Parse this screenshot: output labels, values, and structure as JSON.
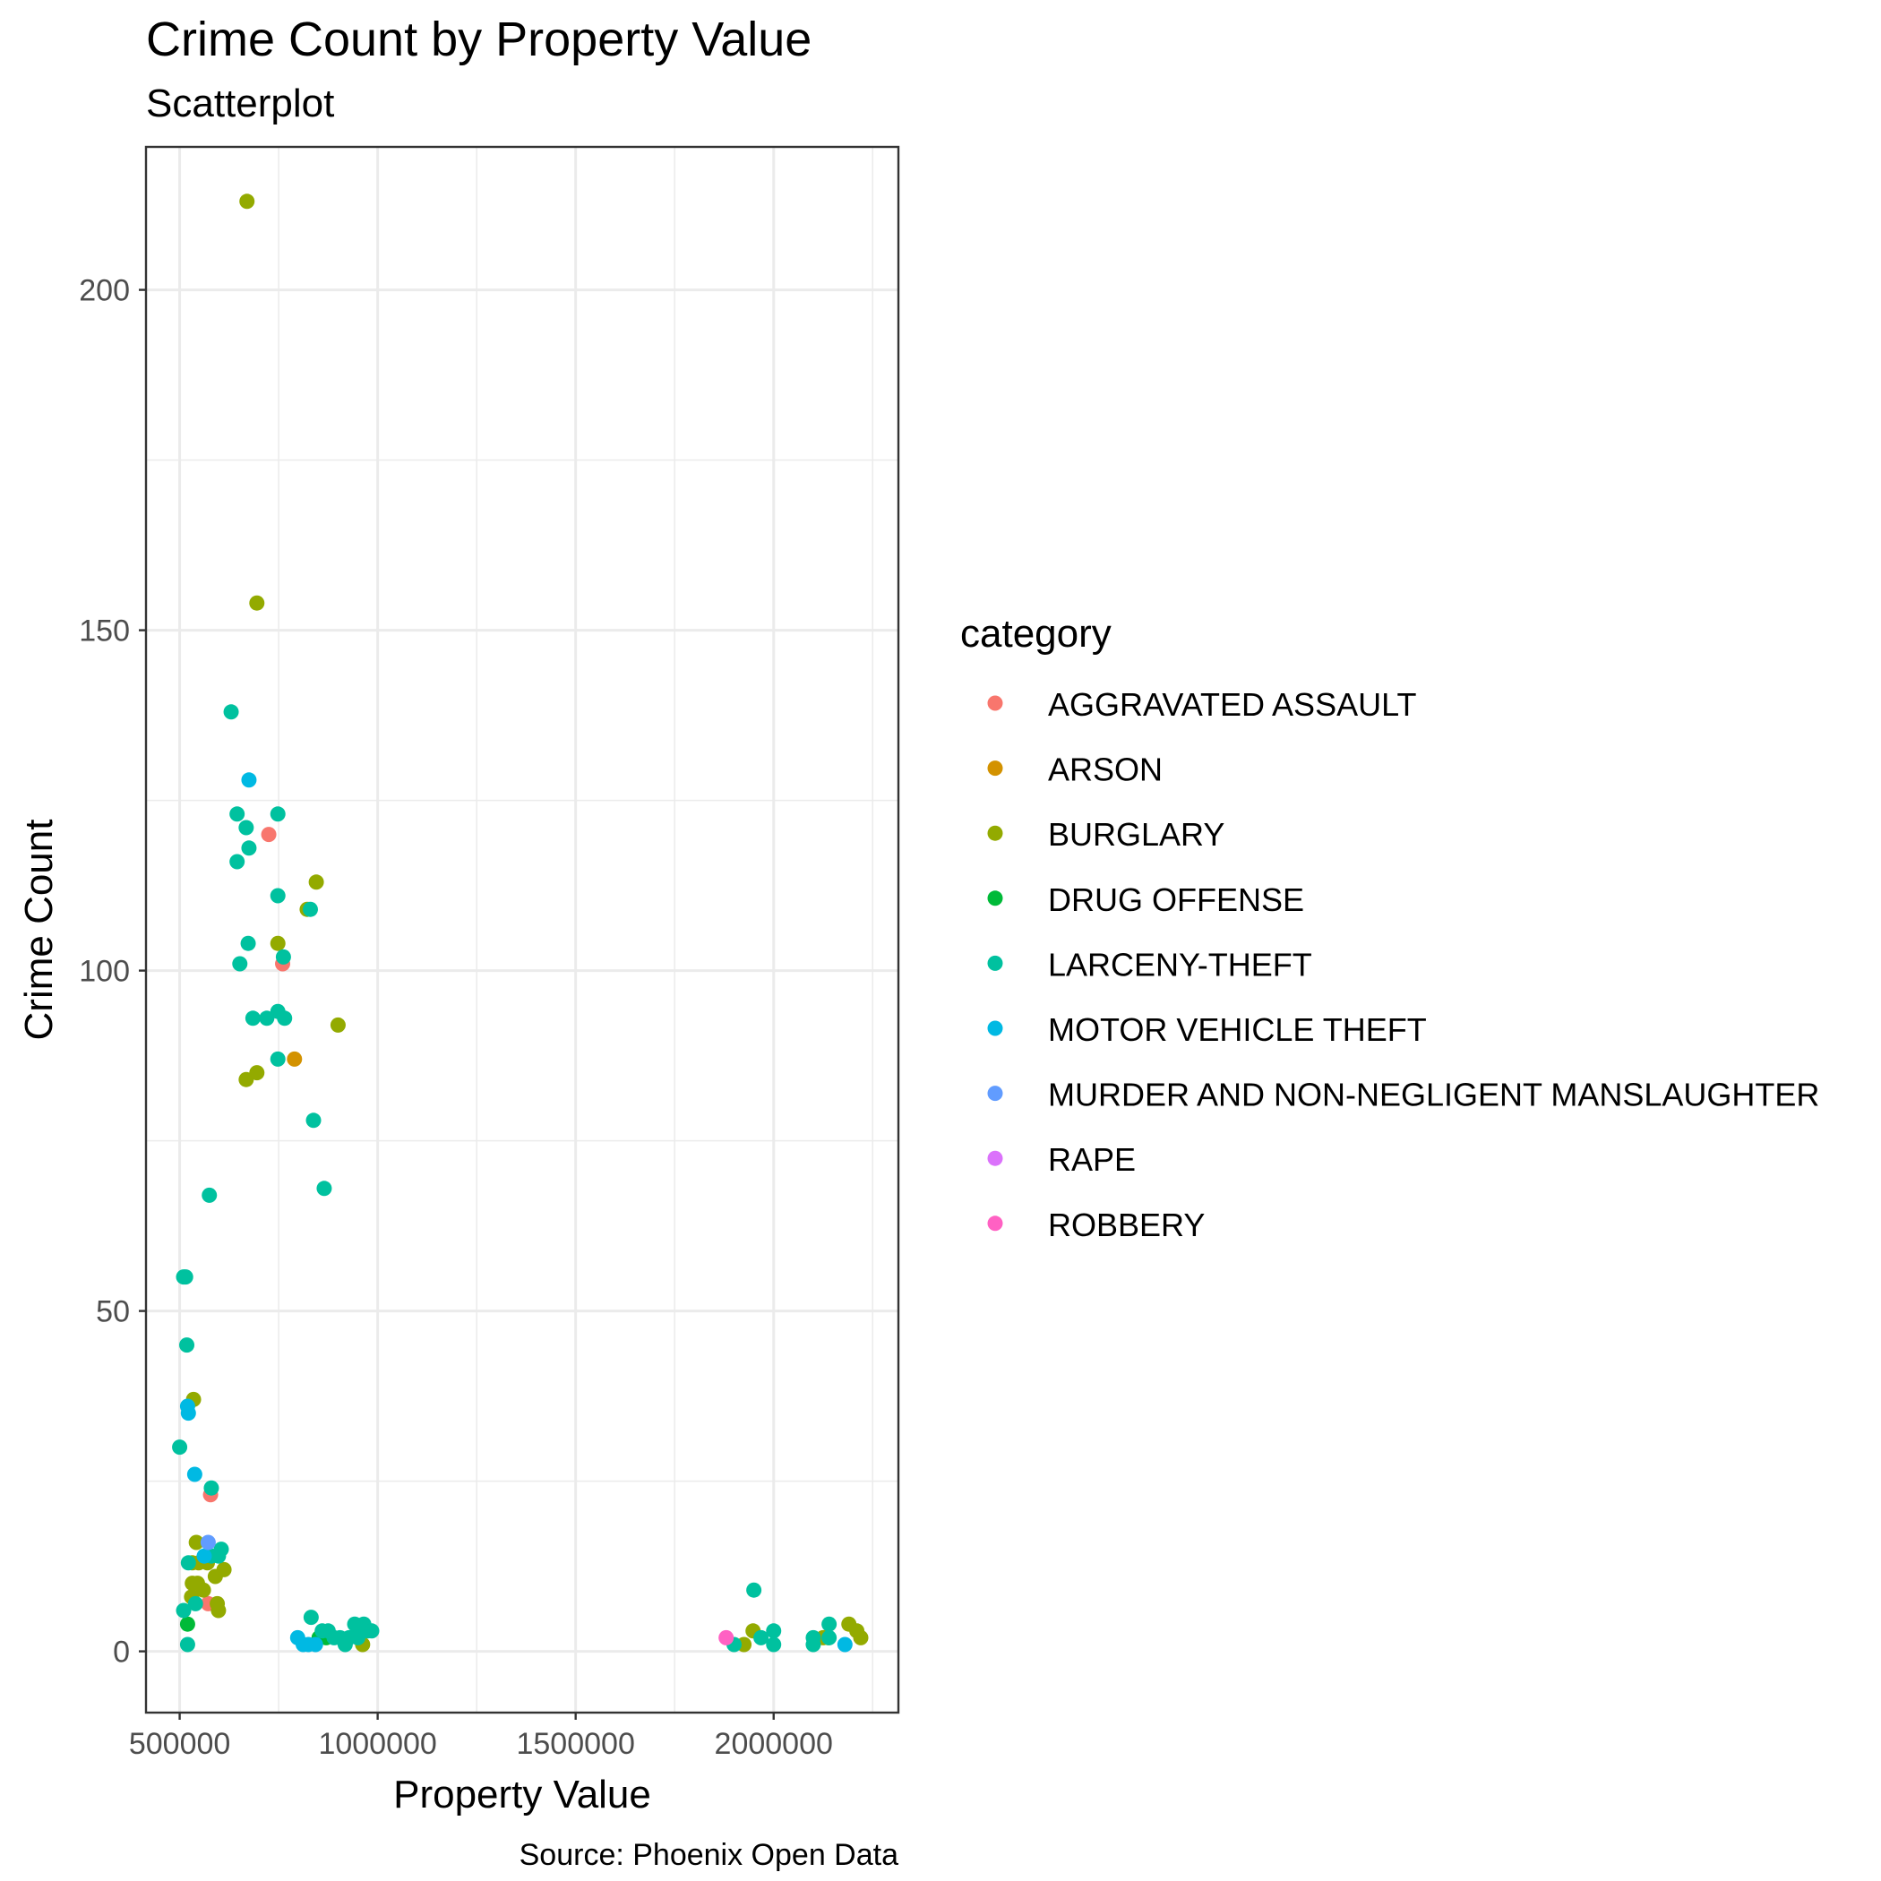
{
  "chart_data": {
    "type": "scatter",
    "title": "Crime Count by Property Value",
    "subtitle": "Scatterplot",
    "xlabel": "Property Value",
    "ylabel": "Crime Count",
    "caption": "Source: Phoenix Open Data",
    "xlim": [
      415000,
      2315000
    ],
    "ylim": [
      -9,
      221
    ],
    "x_ticks": [
      500000,
      1000000,
      1500000,
      2000000
    ],
    "x_tick_labels": [
      "500000",
      "1000000",
      "1500000",
      "2000000"
    ],
    "y_ticks": [
      0,
      50,
      100,
      150,
      200
    ],
    "y_tick_labels": [
      "0",
      "50",
      "100",
      "150",
      "200"
    ],
    "grid": true,
    "legend": {
      "title": "category",
      "position": "right"
    },
    "series": [
      {
        "name": "AGGRAVATED ASSAULT",
        "color": "#F8766D",
        "points": [
          [
            725000,
            120
          ],
          [
            760000,
            101
          ],
          [
            578000,
            23
          ],
          [
            572000,
            7
          ]
        ]
      },
      {
        "name": "ARSON",
        "color": "#D39200",
        "points": [
          [
            790000,
            87
          ]
        ]
      },
      {
        "name": "BURGLARY",
        "color": "#93AA00",
        "points": [
          [
            670000,
            213
          ],
          [
            695000,
            154
          ],
          [
            845000,
            113
          ],
          [
            822000,
            109
          ],
          [
            748000,
            104
          ],
          [
            900000,
            92
          ],
          [
            695000,
            85
          ],
          [
            668000,
            84
          ],
          [
            535000,
            37
          ],
          [
            542000,
            16
          ],
          [
            532000,
            13
          ],
          [
            548000,
            13
          ],
          [
            570000,
            13
          ],
          [
            532000,
            10
          ],
          [
            545000,
            10
          ],
          [
            530000,
            8
          ],
          [
            560000,
            9
          ],
          [
            612000,
            12
          ],
          [
            590000,
            11
          ],
          [
            595000,
            7
          ],
          [
            598000,
            6
          ],
          [
            962000,
            1
          ],
          [
            1948000,
            3
          ],
          [
            1925000,
            1
          ],
          [
            2190000,
            4
          ],
          [
            2210000,
            3
          ],
          [
            2220000,
            2
          ],
          [
            2125000,
            2
          ],
          [
            2138000,
            2
          ]
        ]
      },
      {
        "name": "DRUG OFFENSE",
        "color": "#00BA38",
        "points": [
          [
            520000,
            4
          ],
          [
            852000,
            2
          ],
          [
            870000,
            2
          ]
        ]
      },
      {
        "name": "LARCENY-THEFT",
        "color": "#00C19F",
        "points": [
          [
            630000,
            138
          ],
          [
            645000,
            123
          ],
          [
            668000,
            121
          ],
          [
            748000,
            123
          ],
          [
            675000,
            118
          ],
          [
            645000,
            116
          ],
          [
            748000,
            111
          ],
          [
            830000,
            109
          ],
          [
            673000,
            104
          ],
          [
            762000,
            102
          ],
          [
            652000,
            101
          ],
          [
            748000,
            94
          ],
          [
            685000,
            93
          ],
          [
            720000,
            93
          ],
          [
            765000,
            93
          ],
          [
            748000,
            87
          ],
          [
            838000,
            78
          ],
          [
            865000,
            68
          ],
          [
            575000,
            67
          ],
          [
            510000,
            55
          ],
          [
            515000,
            55
          ],
          [
            518000,
            45
          ],
          [
            500000,
            30
          ],
          [
            580000,
            24
          ],
          [
            605000,
            15
          ],
          [
            580000,
            14
          ],
          [
            598000,
            14
          ],
          [
            522000,
            13
          ],
          [
            540000,
            7
          ],
          [
            510000,
            6
          ],
          [
            520000,
            1
          ],
          [
            832000,
            5
          ],
          [
            860000,
            3
          ],
          [
            875000,
            3
          ],
          [
            890000,
            2
          ],
          [
            905000,
            2
          ],
          [
            918000,
            1
          ],
          [
            928000,
            2
          ],
          [
            942000,
            4
          ],
          [
            950000,
            2
          ],
          [
            958000,
            3
          ],
          [
            965000,
            4
          ],
          [
            975000,
            3
          ],
          [
            985000,
            3
          ],
          [
            1950000,
            9
          ],
          [
            1900000,
            1
          ],
          [
            1968000,
            2
          ],
          [
            2000000,
            3
          ],
          [
            2000000,
            1
          ],
          [
            2100000,
            2
          ],
          [
            2100000,
            1
          ],
          [
            2140000,
            4
          ],
          [
            2140000,
            2
          ]
        ]
      },
      {
        "name": "MOTOR VEHICLE THEFT",
        "color": "#00B9E3",
        "points": [
          [
            675000,
            128
          ],
          [
            520000,
            36
          ],
          [
            522000,
            35
          ],
          [
            538000,
            26
          ],
          [
            562000,
            14
          ],
          [
            798000,
            2
          ],
          [
            812000,
            1
          ],
          [
            825000,
            1
          ],
          [
            843000,
            1
          ],
          [
            2180000,
            1
          ]
        ]
      },
      {
        "name": "MURDER AND NON-NEGLIGENT MANSLAUGHTER",
        "color": "#619CFF",
        "points": [
          [
            572000,
            16
          ]
        ]
      },
      {
        "name": "RAPE",
        "color": "#DB72FB",
        "points": []
      },
      {
        "name": "ROBBERY",
        "color": "#FF61C3",
        "points": [
          [
            1880000,
            2
          ]
        ]
      }
    ]
  }
}
